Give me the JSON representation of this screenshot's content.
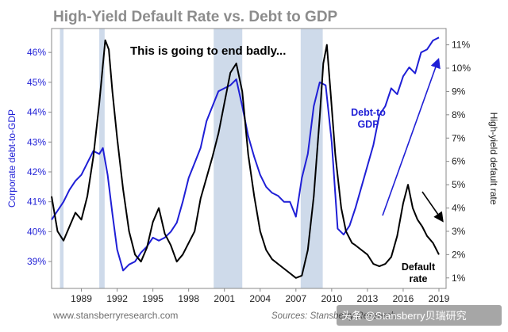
{
  "chart_data": {
    "type": "line",
    "title": "High-Yield Default Rate vs. Debt to GDP",
    "y_left_label": "Corporate debt-to-GDP",
    "y_right_label": "High-yield default rate",
    "y_left_ticks": [
      "39%",
      "40%",
      "41%",
      "42%",
      "43%",
      "44%",
      "45%",
      "46%"
    ],
    "y_left_tick_values": [
      39,
      40,
      41,
      42,
      43,
      44,
      45,
      46
    ],
    "y_left_range": [
      38.1,
      46.8
    ],
    "y_right_ticks": [
      "1%",
      "2%",
      "3%",
      "4%",
      "5%",
      "6%",
      "7%",
      "8%",
      "9%",
      "10%",
      "11%"
    ],
    "y_right_tick_values": [
      1,
      2,
      3,
      4,
      5,
      6,
      7,
      8,
      9,
      10,
      11
    ],
    "y_right_range": [
      0.55,
      11.7
    ],
    "x_ticks": [
      "1989",
      "1992",
      "1995",
      "1998",
      "2001",
      "2004",
      "2007",
      "2010",
      "2013",
      "2016",
      "2019"
    ],
    "x_tick_values": [
      1989,
      1992,
      1995,
      1998,
      2001,
      2004,
      2007,
      2010,
      2013,
      2016,
      2019
    ],
    "x_range": [
      1986.5,
      2019.6
    ],
    "recessions": [
      [
        1987.2,
        1987.5
      ],
      [
        1990.5,
        1990.95
      ],
      [
        2000.1,
        2002.5
      ],
      [
        2007.4,
        2009.25
      ]
    ],
    "series": [
      {
        "name": "Debt-to GDP",
        "axis": "left",
        "color": "#1f1fd6",
        "x": [
          1986.5,
          1987.0,
          1987.5,
          1988.0,
          1988.5,
          1989.0,
          1989.5,
          1990.0,
          1990.5,
          1990.8,
          1991.2,
          1991.6,
          1992.0,
          1992.5,
          1993.0,
          1993.5,
          1994.0,
          1994.5,
          1995.0,
          1995.5,
          1996.0,
          1996.5,
          1997.0,
          1997.5,
          1998.0,
          1998.5,
          1999.0,
          1999.5,
          2000.0,
          2000.5,
          2001.0,
          2001.5,
          2002.0,
          2002.5,
          2003.0,
          2003.5,
          2004.0,
          2004.5,
          2005.0,
          2005.5,
          2006.0,
          2006.5,
          2007.0,
          2007.5,
          2008.0,
          2008.5,
          2009.0,
          2009.5,
          2010.0,
          2010.5,
          2011.0,
          2011.5,
          2012.0,
          2012.5,
          2013.0,
          2013.5,
          2014.0,
          2014.5,
          2015.0,
          2015.5,
          2016.0,
          2016.5,
          2017.0,
          2017.5,
          2018.0,
          2018.5,
          2019.0
        ],
        "values": [
          40.4,
          40.7,
          41.0,
          41.4,
          41.7,
          41.9,
          42.3,
          42.7,
          42.6,
          42.8,
          41.9,
          40.6,
          39.4,
          38.7,
          38.9,
          39.0,
          39.3,
          39.5,
          39.8,
          39.7,
          39.8,
          40.0,
          40.3,
          41.0,
          41.8,
          42.3,
          42.8,
          43.7,
          44.2,
          44.7,
          44.8,
          44.9,
          45.1,
          44.2,
          43.2,
          42.5,
          41.9,
          41.5,
          41.3,
          41.2,
          41.0,
          41.0,
          40.5,
          41.8,
          42.6,
          44.2,
          45.0,
          44.9,
          43.0,
          40.1,
          39.9,
          40.2,
          40.8,
          41.5,
          42.2,
          42.9,
          43.9,
          44.2,
          44.8,
          44.6,
          45.2,
          45.5,
          45.3,
          46.0,
          46.1,
          46.4,
          46.5
        ]
      },
      {
        "name": "Default rate",
        "axis": "right",
        "color": "#000000",
        "x": [
          1986.5,
          1987.0,
          1987.5,
          1988.0,
          1988.5,
          1989.0,
          1989.5,
          1990.0,
          1990.5,
          1991.0,
          1991.3,
          1991.6,
          1992.0,
          1992.5,
          1993.0,
          1993.5,
          1994.0,
          1994.5,
          1995.0,
          1995.5,
          1996.0,
          1996.5,
          1997.0,
          1997.5,
          1998.0,
          1998.5,
          1999.0,
          1999.5,
          2000.0,
          2000.5,
          2001.0,
          2001.5,
          2002.0,
          2002.5,
          2003.0,
          2003.5,
          2004.0,
          2004.5,
          2005.0,
          2005.5,
          2006.0,
          2006.5,
          2007.0,
          2007.5,
          2008.0,
          2008.5,
          2009.0,
          2009.3,
          2009.6,
          2009.9,
          2010.3,
          2010.8,
          2011.2,
          2011.7,
          2012.0,
          2012.5,
          2013.0,
          2013.5,
          2014.0,
          2014.5,
          2015.0,
          2015.5,
          2016.0,
          2016.4,
          2016.8,
          2017.2,
          2017.6,
          2018.0,
          2018.5,
          2019.0
        ],
        "values": [
          4.5,
          3.0,
          2.6,
          3.2,
          3.8,
          3.5,
          4.5,
          6.2,
          8.5,
          11.2,
          10.8,
          9.0,
          7.0,
          4.8,
          3.0,
          2.0,
          1.7,
          2.3,
          3.4,
          4.0,
          2.9,
          2.4,
          1.7,
          2.0,
          2.5,
          3.0,
          4.4,
          5.3,
          6.2,
          7.2,
          8.5,
          9.8,
          10.2,
          9.0,
          6.3,
          4.5,
          3.0,
          2.2,
          1.8,
          1.6,
          1.4,
          1.2,
          1.0,
          1.1,
          2.2,
          4.5,
          7.9,
          10.2,
          11.0,
          9.0,
          6.3,
          4.0,
          3.0,
          2.5,
          2.4,
          2.2,
          2.0,
          1.6,
          1.5,
          1.6,
          1.9,
          2.8,
          4.2,
          5.0,
          4.0,
          3.5,
          3.2,
          2.8,
          2.5,
          2.0
        ]
      }
    ],
    "annotations": {
      "main": "This is going to end badly...",
      "debt_line1": "Debt-to",
      "debt_line2": "GDP",
      "default_line1": "Default",
      "default_line2": "rate"
    },
    "grid": false
  },
  "footer": {
    "left": "www.stansberryresearch.com",
    "right": "Sources: Stansberry Research",
    "watermark": "头条 @Stansberry贝瑞研究"
  },
  "colors": {
    "debt": "#1f1fd6",
    "default": "#000000",
    "recession_fill": "#c5d3e6",
    "arrow_up": "#1f1fd6",
    "arrow_down": "#000000"
  }
}
